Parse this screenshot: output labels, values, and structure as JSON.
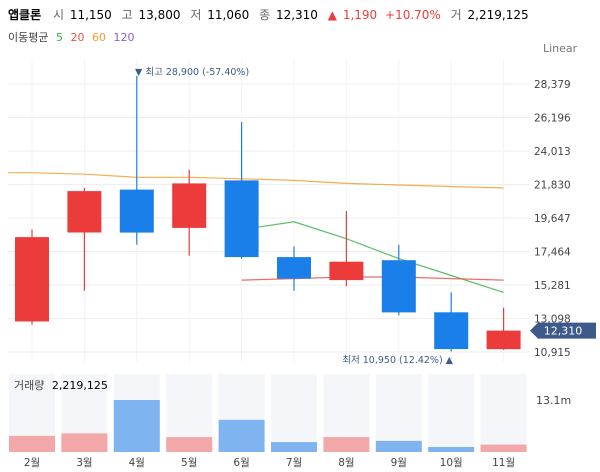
{
  "header": {
    "name": "앱클론",
    "open_label": "시",
    "open_value": "11,150",
    "high_label": "고",
    "high_value": "13,800",
    "low_label": "저",
    "low_value": "11,060",
    "close_label": "종",
    "close_value": "12,310",
    "change_arrow": "▲",
    "change_value": "1,190",
    "change_pct": "+10.70%",
    "volume_label": "거",
    "volume_value": "2,219,125"
  },
  "ma_legend": {
    "label": "이동평균",
    "items": [
      {
        "period": "5",
        "color": "#3cb44b"
      },
      {
        "period": "20",
        "color": "#e8534e"
      },
      {
        "period": "60",
        "color": "#f0a030"
      },
      {
        "period": "120",
        "color": "#8a5cd6"
      }
    ]
  },
  "scale_label": "Linear",
  "max_annotation": "▼ 최고 28,900 (-57.40%)",
  "min_annotation": "최저 10,950 (12.42%) ▲",
  "current_price_tag": "12,310",
  "volume_panel": {
    "title": "거래량",
    "value": "2,219,125",
    "max_label": "13.1m"
  },
  "colors": {
    "up": "#ec3b3b",
    "down": "#1a7fe8",
    "up_volume": "#f2a7a8",
    "down_volume": "#7fb4f0",
    "current_tag": "#3d5a8a"
  },
  "chart_data": {
    "type": "candlestick",
    "categories": [
      "2월",
      "3월",
      "4월",
      "5월",
      "6월",
      "7월",
      "8월",
      "9월",
      "10월",
      "11월"
    ],
    "ohlc": [
      {
        "open": 12900,
        "high": 18900,
        "low": 12700,
        "close": 18400
      },
      {
        "open": 18700,
        "high": 21600,
        "low": 14900,
        "close": 21400
      },
      {
        "open": 21500,
        "high": 28900,
        "low": 17900,
        "close": 18700
      },
      {
        "open": 19000,
        "high": 22800,
        "low": 17200,
        "close": 21900
      },
      {
        "open": 22100,
        "high": 25900,
        "low": 17000,
        "close": 17100
      },
      {
        "open": 17100,
        "high": 17800,
        "low": 14900,
        "close": 15700
      },
      {
        "open": 15600,
        "high": 20100,
        "low": 15200,
        "close": 16800
      },
      {
        "open": 16900,
        "high": 17900,
        "low": 13300,
        "close": 13500
      },
      {
        "open": 13500,
        "high": 14800,
        "low": 10950,
        "close": 11100
      },
      {
        "open": 11100,
        "high": 13800,
        "low": 11060,
        "close": 12310
      }
    ],
    "moving_averages": [
      {
        "name": "5",
        "values": [
          null,
          null,
          null,
          null,
          18900,
          19400,
          18300,
          17000,
          15900,
          14800
        ]
      },
      {
        "name": "20",
        "values": [
          null,
          null,
          null,
          null,
          15600,
          15700,
          15800,
          15800,
          15700,
          15600
        ]
      },
      {
        "name": "60",
        "values": [
          22600,
          22500,
          22300,
          22300,
          22200,
          22100,
          21900,
          21800,
          21700,
          21600
        ]
      }
    ],
    "volume": [
      0.13,
      0.15,
      0.42,
      0.12,
      0.26,
      0.08,
      0.12,
      0.09,
      0.04,
      0.06
    ],
    "volume_max_label": "13.1m",
    "y_ticks": [
      10915,
      13098,
      15281,
      17464,
      19647,
      21830,
      24013,
      26196,
      28379
    ],
    "ylim": [
      10300,
      30300
    ],
    "y_scale": "linear",
    "grid": true
  }
}
